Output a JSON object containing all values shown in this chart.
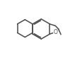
{
  "background": "#ffffff",
  "line_color": "#4a4a4a",
  "line_width": 1.1,
  "dbo": 0.018,
  "figsize": [
    1.06,
    0.82
  ],
  "dpi": 100
}
